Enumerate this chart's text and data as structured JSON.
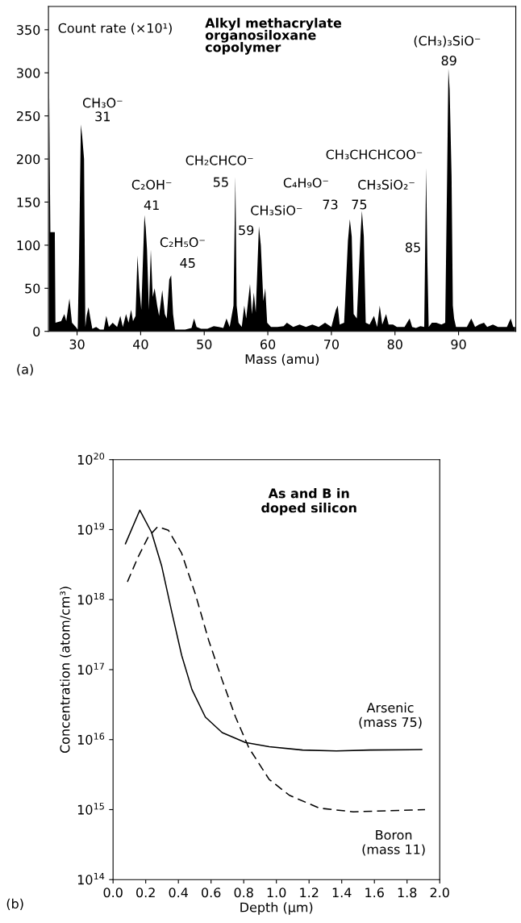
{
  "chart_data": [
    {
      "type": "area",
      "title": "Alkyl methacrylate\norganosiloxane\ncopolymer",
      "ylabel": "Count rate (×10¹)",
      "xlabel": "Mass (amu)",
      "color": "#000000",
      "x": [
        25.6,
        25.8,
        26.5,
        26.6,
        27.5,
        28.0,
        28.3,
        28.8,
        29.2,
        29.8,
        30.1,
        30.3,
        30.6,
        30.8,
        31.1,
        31.3,
        31.5,
        31.8,
        32.1,
        32.4,
        33.0,
        33.6,
        34.2,
        34.6,
        35.0,
        35.6,
        36.3,
        36.8,
        37.2,
        37.7,
        38.1,
        38.5,
        38.8,
        39.2,
        39.5,
        39.8,
        40.1,
        40.6,
        40.8,
        41.0,
        41.3,
        41.6,
        41.9,
        42.2,
        42.6,
        42.9,
        43.4,
        43.8,
        44.1,
        44.5,
        44.8,
        45.1,
        45.4,
        46.0,
        47.0,
        48.0,
        48.4,
        48.8,
        49.5,
        50.5,
        51.5,
        52.3,
        53.0,
        53.5,
        54.0,
        54.6,
        54.9,
        55.1,
        55.4,
        55.9,
        56.3,
        56.6,
        57.2,
        57.5,
        57.8,
        58.1,
        58.6,
        58.9,
        59.3,
        59.6,
        59.9,
        60.5,
        61.5,
        62.5,
        63.0,
        64.0,
        65.0,
        66.0,
        67.0,
        68.0,
        69.0,
        70.0,
        70.7,
        71.0,
        71.3,
        72.0,
        72.6,
        72.9,
        73.2,
        73.5,
        74.0,
        74.6,
        74.8,
        75.1,
        75.4,
        76.0,
        76.7,
        77.2,
        77.6,
        78.0,
        78.6,
        79.0,
        79.7,
        80.3,
        81.5,
        82.3,
        82.7,
        83.3,
        84.0,
        84.6,
        84.9,
        85.1,
        85.3,
        85.8,
        86.5,
        87.3,
        87.9,
        88.2,
        88.4,
        88.6,
        88.9,
        89.1,
        89.3,
        89.6,
        90.5,
        91.3,
        92.0,
        92.6,
        93.2,
        94.0,
        94.5,
        95.4,
        96.2,
        97.0,
        97.6,
        98.2,
        98.6,
        98.9
      ],
      "values": [
        290,
        115,
        115,
        10,
        12,
        20,
        12,
        38,
        10,
        5,
        2,
        80,
        240,
        227,
        200,
        5,
        18,
        28,
        15,
        3,
        5,
        2,
        2,
        18,
        5,
        10,
        5,
        18,
        5,
        20,
        10,
        25,
        12,
        18,
        88,
        50,
        25,
        135,
        120,
        95,
        25,
        95,
        40,
        50,
        30,
        18,
        48,
        20,
        15,
        60,
        65,
        20,
        2,
        2,
        2,
        4,
        15,
        5,
        3,
        3,
        6,
        5,
        4,
        15,
        5,
        30,
        180,
        30,
        10,
        5,
        30,
        15,
        55,
        20,
        45,
        22,
        122,
        100,
        35,
        50,
        10,
        5,
        5,
        6,
        10,
        5,
        8,
        5,
        8,
        5,
        10,
        5,
        25,
        30,
        8,
        10,
        105,
        130,
        110,
        20,
        15,
        115,
        140,
        110,
        10,
        8,
        18,
        5,
        30,
        8,
        20,
        8,
        8,
        5,
        5,
        15,
        5,
        4,
        6,
        5,
        190,
        80,
        5,
        10,
        10,
        8,
        10,
        180,
        305,
        280,
        180,
        30,
        15,
        5,
        5,
        5,
        15,
        5,
        8,
        10,
        5,
        8,
        5,
        5,
        5,
        15,
        5,
        5
      ],
      "xlim": [
        25.5,
        99
      ],
      "ylim": [
        0,
        377
      ],
      "xticks": [
        30,
        40,
        50,
        60,
        70,
        80,
        90
      ],
      "yticks": [
        0,
        50,
        100,
        150,
        200,
        250,
        300,
        350
      ],
      "annotations": [
        "CH₃O⁻",
        "31",
        "C₂OH⁻",
        "41",
        "C₂H₅O⁻",
        "45",
        "CH₂CHCO⁻",
        "55",
        "CH₃SiO⁻",
        "59",
        "C₄H₉O⁻",
        "73",
        "75",
        "CH₃SiO₂⁻",
        "CH₃CHCHCOO⁻",
        "85",
        "(CH₃)₃SiO⁻",
        "89",
        "(a)"
      ]
    },
    {
      "type": "line",
      "title": "As and B in\ndoped silicon",
      "xlabel": "Depth (μm)",
      "ylabel": "Concentration (atom/cm³)",
      "log": "y",
      "xlim": [
        0.0,
        2.0
      ],
      "ylim": [
        100000000000000.0,
        1e+20
      ],
      "xticks": [
        {
          "value": 0,
          "label": "0.0"
        },
        0.2,
        0.4,
        0.6,
        0.8,
        {
          "value": 1,
          "label": "1.0"
        },
        1.2,
        1.4,
        1.6,
        1.8,
        {
          "value": 2,
          "label": "2.0"
        }
      ],
      "yticks": [
        {
          "value": 100000000000000.0,
          "label": "10$^{14}$"
        },
        {
          "value": 1000000000000000.0,
          "label": "10$^{15}$"
        },
        {
          "value": 1e+16,
          "label": "10$^{16}$"
        },
        {
          "value": 1e+17,
          "label": "10$^{17}$"
        },
        {
          "value": 1e+18,
          "label": "10$^{18}$"
        },
        {
          "value": 1e+19,
          "label": "10$^{19}$"
        },
        {
          "value": 1e+20,
          "label": "10$^{20}$"
        }
      ],
      "series": [
        {
          "name": "Arsenic\n(mass 75)",
          "color": "#000000",
          "line_style": "solid",
          "x": [
            0.076,
            0.164,
            0.236,
            0.298,
            0.36,
            0.42,
            0.483,
            0.565,
            0.668,
            0.81,
            0.956,
            1.16,
            1.367,
            1.572,
            1.89
          ],
          "values": [
            6.3e+18,
            1.9e+19,
            9.1e+18,
            3e+18,
            6.6e+17,
            1.6e+17,
            5.2e+16,
            2.1e+16,
            1.26e+16,
            9100000000000000.0,
            7900000000000000.0,
            7100000000000000.0,
            6900000000000000.0,
            7100000000000000.0,
            7200000000000000.0
          ]
        },
        {
          "name": "Boron\n(mass 11)",
          "color": "#000000",
          "line_style": "dashed",
          "x": [
            0.088,
            0.154,
            0.216,
            0.273,
            0.339,
            0.42,
            0.504,
            0.586,
            0.668,
            0.75,
            0.832,
            0.956,
            1.08,
            1.264,
            1.47,
            1.91
          ],
          "values": [
            1.8e+18,
            4.1e+18,
            7.9e+18,
            1.1e+19,
            9.8e+18,
            4.6e+18,
            1.2e+18,
            2.6e+17,
            7.1e+16,
            2.1e+16,
            7600000000000000.0,
            2700000000000000.0,
            1600000000000000.0,
            1050000000000000.0,
            930000000000000.0,
            1000000000000000.0
          ]
        }
      ],
      "annotations": [
        "(b)"
      ]
    }
  ]
}
